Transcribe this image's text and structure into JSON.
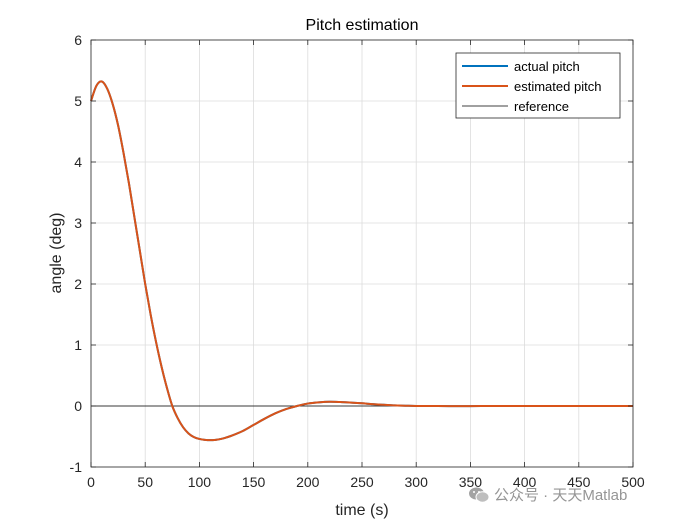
{
  "chart_data": {
    "type": "line",
    "title": "Pitch estimation",
    "xlabel": "time (s)",
    "ylabel": "angle (deg)",
    "xlim": [
      0,
      500
    ],
    "ylim": [
      -1,
      6
    ],
    "xticks": [
      0,
      50,
      100,
      150,
      200,
      250,
      300,
      350,
      400,
      450,
      500
    ],
    "yticks": [
      -1,
      0,
      1,
      2,
      3,
      4,
      5,
      6
    ],
    "grid": true,
    "legend_position": "top-right",
    "series": [
      {
        "name": "actual pitch",
        "color": "#0072BD",
        "x": [
          0,
          5,
          10,
          15,
          20,
          25,
          30,
          35,
          40,
          45,
          50,
          55,
          60,
          65,
          70,
          75,
          80,
          85,
          90,
          95,
          100,
          105,
          110,
          115,
          120,
          125,
          130,
          140,
          150,
          160,
          170,
          180,
          190,
          200,
          210,
          220,
          230,
          240,
          250,
          260,
          270,
          280,
          290,
          300,
          320,
          340,
          360,
          380,
          400,
          450,
          500
        ],
        "y": [
          5.0,
          5.25,
          5.32,
          5.2,
          4.95,
          4.6,
          4.15,
          3.65,
          3.1,
          2.55,
          2.0,
          1.5,
          1.05,
          0.65,
          0.3,
          0.0,
          -0.2,
          -0.35,
          -0.45,
          -0.51,
          -0.54,
          -0.555,
          -0.56,
          -0.555,
          -0.54,
          -0.515,
          -0.485,
          -0.41,
          -0.31,
          -0.21,
          -0.12,
          -0.05,
          0.0,
          0.04,
          0.06,
          0.07,
          0.065,
          0.055,
          0.045,
          0.03,
          0.02,
          0.01,
          0.005,
          0.0,
          0.0,
          -0.003,
          0.0,
          0.0,
          0.0,
          0.0,
          0.0
        ]
      },
      {
        "name": "estimated pitch",
        "color": "#D95319",
        "x": [
          0,
          5,
          10,
          15,
          20,
          25,
          30,
          35,
          40,
          45,
          50,
          55,
          60,
          65,
          70,
          75,
          80,
          85,
          90,
          95,
          100,
          105,
          110,
          115,
          120,
          125,
          130,
          140,
          150,
          160,
          170,
          180,
          190,
          200,
          210,
          220,
          230,
          240,
          250,
          260,
          270,
          280,
          290,
          300,
          320,
          340,
          360,
          380,
          400,
          450,
          500
        ],
        "y": [
          5.0,
          5.25,
          5.32,
          5.2,
          4.95,
          4.6,
          4.15,
          3.65,
          3.1,
          2.55,
          2.0,
          1.5,
          1.05,
          0.65,
          0.3,
          0.0,
          -0.2,
          -0.35,
          -0.45,
          -0.51,
          -0.54,
          -0.555,
          -0.56,
          -0.555,
          -0.54,
          -0.515,
          -0.485,
          -0.41,
          -0.31,
          -0.21,
          -0.12,
          -0.05,
          0.0,
          0.04,
          0.06,
          0.07,
          0.065,
          0.055,
          0.045,
          0.03,
          0.02,
          0.01,
          0.005,
          0.0,
          0.0,
          -0.003,
          0.0,
          0.0,
          0.0,
          0.0,
          0.0
        ]
      },
      {
        "name": "reference",
        "color": "#000000",
        "x": [
          0,
          500
        ],
        "y": [
          0,
          0
        ]
      }
    ]
  },
  "watermark": {
    "text": "公众号 · 天天Matlab"
  }
}
